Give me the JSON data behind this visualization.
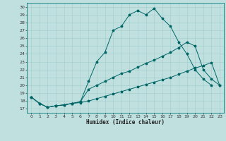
{
  "xlabel": "Humidex (Indice chaleur)",
  "bg_color": "#c0e0e0",
  "line_color": "#006666",
  "grid_color": "#a0cccc",
  "xlim": [
    -0.5,
    23.5
  ],
  "ylim": [
    16.5,
    30.5
  ],
  "xticks": [
    0,
    1,
    2,
    3,
    4,
    5,
    6,
    7,
    8,
    9,
    10,
    11,
    12,
    13,
    14,
    15,
    16,
    17,
    18,
    19,
    20,
    21,
    22,
    23
  ],
  "yticks": [
    17,
    18,
    19,
    20,
    21,
    22,
    23,
    24,
    25,
    26,
    27,
    28,
    29,
    30
  ],
  "line1_x": [
    0,
    1,
    2,
    3,
    4,
    5,
    6,
    7,
    8,
    9,
    10,
    11,
    12,
    13,
    14,
    15,
    16,
    17,
    18,
    19,
    20,
    21,
    22,
    23
  ],
  "line1_y": [
    18.5,
    17.7,
    17.2,
    17.4,
    17.5,
    17.7,
    17.8,
    18.0,
    18.3,
    18.6,
    18.9,
    19.2,
    19.5,
    19.8,
    20.1,
    20.4,
    20.7,
    21.0,
    21.4,
    21.8,
    22.2,
    22.5,
    22.9,
    20.0
  ],
  "line2_x": [
    0,
    1,
    2,
    3,
    4,
    5,
    6,
    7,
    8,
    9,
    10,
    11,
    12,
    13,
    14,
    15,
    16,
    17,
    18,
    19,
    20,
    21,
    22
  ],
  "line2_y": [
    18.5,
    17.7,
    17.2,
    17.4,
    17.5,
    17.7,
    17.9,
    20.5,
    23.0,
    24.2,
    27.0,
    27.5,
    29.0,
    29.5,
    29.0,
    29.8,
    28.5,
    27.5,
    25.5,
    24.0,
    22.0,
    20.8,
    20.0
  ],
  "line3_x": [
    0,
    1,
    2,
    3,
    4,
    5,
    6,
    7,
    8,
    9,
    10,
    11,
    12,
    13,
    14,
    15,
    16,
    17,
    18,
    19,
    20,
    21,
    22,
    23
  ],
  "line3_y": [
    18.5,
    17.7,
    17.2,
    17.4,
    17.5,
    17.7,
    17.9,
    19.5,
    20.0,
    20.5,
    21.0,
    21.5,
    21.8,
    22.3,
    22.8,
    23.2,
    23.7,
    24.2,
    24.8,
    25.5,
    25.0,
    22.0,
    20.8,
    20.0
  ]
}
